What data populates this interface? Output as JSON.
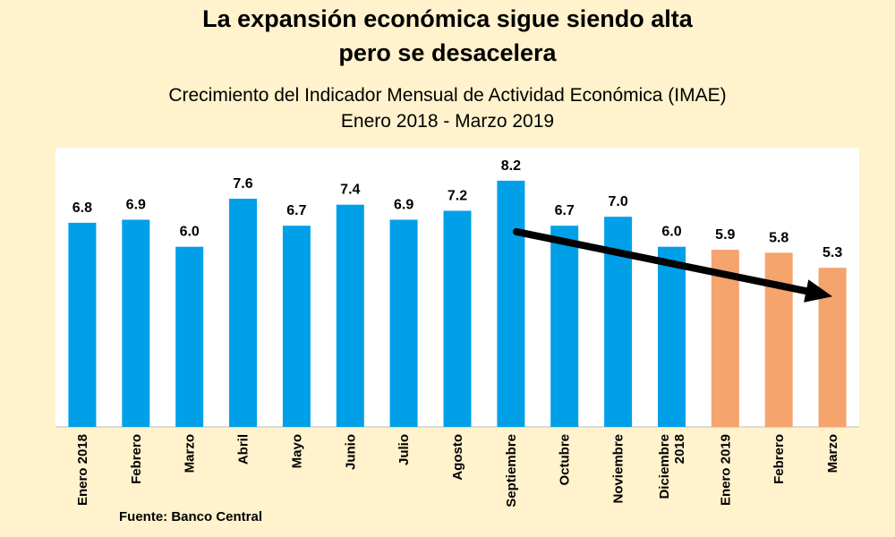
{
  "chart_data": {
    "type": "bar",
    "title": "La expansión económica sigue siendo alta",
    "title_line2": "pero se desacelera",
    "subtitle": "Crecimiento del Indicador Mensual de Actividad Económica (IMAE)",
    "subtitle_line2": "Enero 2018 - Marzo 2019",
    "categories": [
      [
        "Enero 2018"
      ],
      [
        "Febrero"
      ],
      [
        "Marzo"
      ],
      [
        "Abril"
      ],
      [
        "Mayo"
      ],
      [
        "Junio"
      ],
      [
        "Julio"
      ],
      [
        "Agosto"
      ],
      [
        "Septiembre"
      ],
      [
        "Octubre"
      ],
      [
        "Noviembre"
      ],
      [
        "Diciembre",
        "2018"
      ],
      [
        "Enero 2019"
      ],
      [
        "Febrero"
      ],
      [
        "Marzo"
      ]
    ],
    "values": [
      6.8,
      6.9,
      6.0,
      7.6,
      6.7,
      7.4,
      6.9,
      7.2,
      8.2,
      6.7,
      7.0,
      6.0,
      5.9,
      5.8,
      5.3
    ],
    "value_labels": [
      "6.8",
      "6.9",
      "6.0",
      "7.6",
      "6.7",
      "7.4",
      "6.9",
      "7.2",
      "8.2",
      "6.7",
      "7.0",
      "6.0",
      "5.9",
      "5.8",
      "5.3"
    ],
    "ylim": [
      0,
      9.3
    ],
    "grid": false,
    "legend": "none",
    "colors": {
      "year_2018": "#00a0e9",
      "year_2019": "#f4a46c",
      "background": "#fff2cc",
      "plot_area": "#ffffff",
      "trend_arrow": "#000000"
    },
    "bar_color_groups": [
      "year_2018",
      "year_2018",
      "year_2018",
      "year_2018",
      "year_2018",
      "year_2018",
      "year_2018",
      "year_2018",
      "year_2018",
      "year_2018",
      "year_2018",
      "year_2018",
      "year_2019",
      "year_2019",
      "year_2019"
    ],
    "annotation": {
      "type": "arrow",
      "from_category_index": 8,
      "to_category_index": 14
    }
  },
  "source": "Fuente: Banco Central"
}
